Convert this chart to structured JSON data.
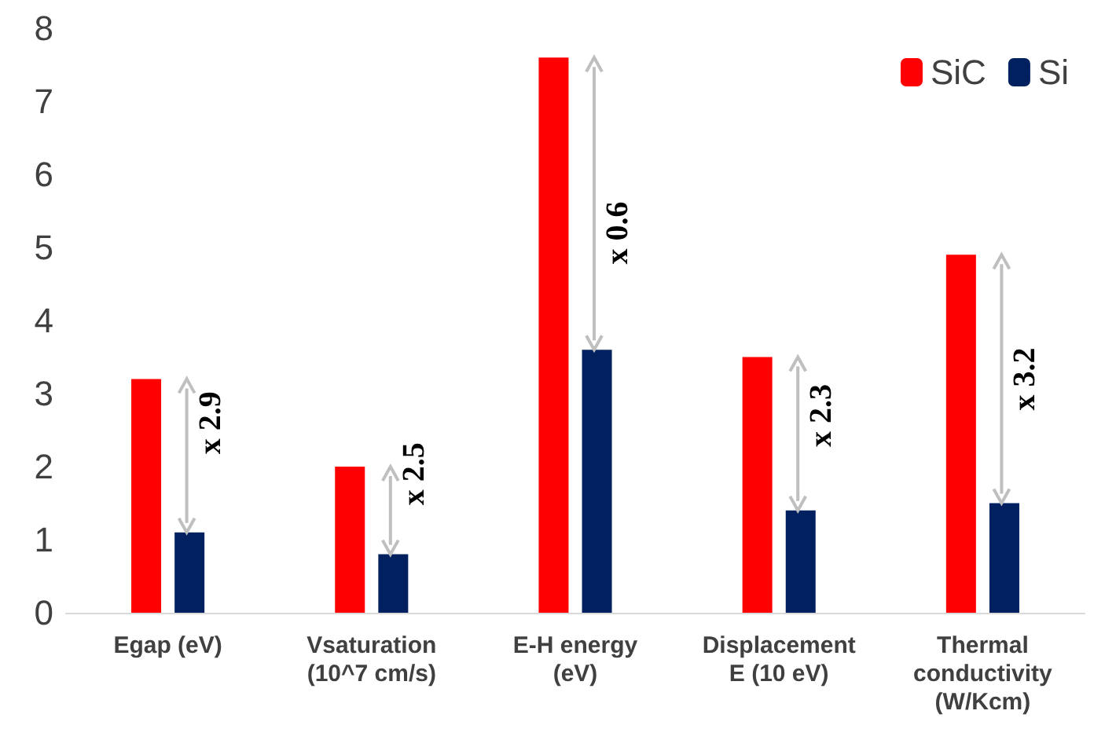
{
  "chart_data": {
    "type": "bar",
    "categories": [
      "Egap (eV)",
      "Vsaturation\n(10^7 cm/s)",
      "E-H energy\n(eV)",
      "Displacement\nE (10 eV)",
      "Thermal\nconductivity\n(W/Kcm)"
    ],
    "series": [
      {
        "name": "SiC",
        "color": "#ff0000",
        "values": [
          3.2,
          2.0,
          7.6,
          3.5,
          4.9
        ]
      },
      {
        "name": "Si",
        "color": "#002060",
        "values": [
          1.1,
          0.8,
          3.6,
          1.4,
          1.5
        ]
      }
    ],
    "ylim": [
      0,
      8
    ],
    "yticks": [
      0,
      1,
      2,
      3,
      4,
      5,
      6,
      7,
      8
    ],
    "grid": false,
    "legend": "top right",
    "annotations": [
      {
        "text": "x 2.9",
        "x": "Egap (eV)",
        "y": 2.6
      },
      {
        "text": "x 2.5",
        "x": "Vsaturation\n(10^7 cm/s)",
        "y": 1.9
      },
      {
        "text": "x 0.6",
        "x": "E-H energy\n(eV)",
        "y": 5.2
      },
      {
        "text": "x 2.3",
        "x": "Displacement\nE (10 eV)",
        "y": 2.7
      },
      {
        "text": "x 3.2",
        "x": "Thermal\nconductivity\n(W/Kcm)",
        "y": 3.2
      }
    ]
  }
}
